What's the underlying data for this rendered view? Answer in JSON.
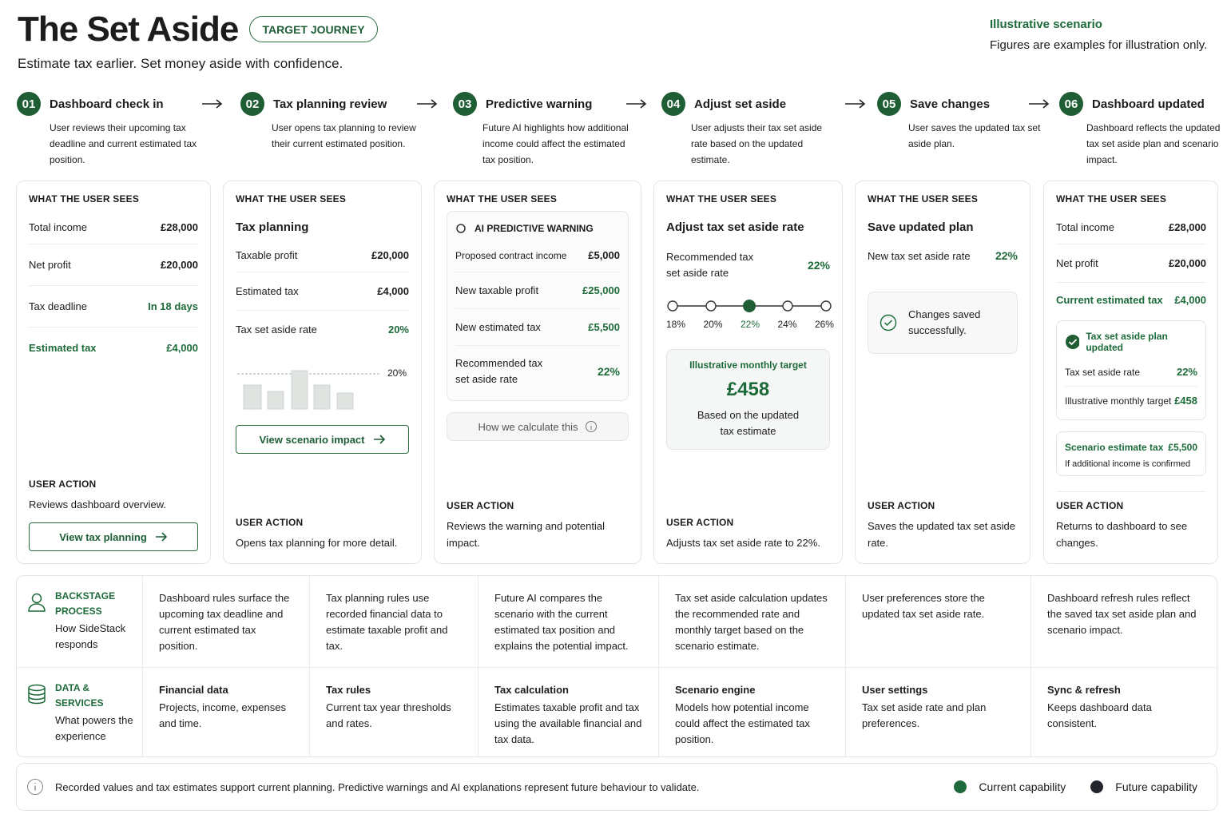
{
  "header": {
    "title": "The Set Aside",
    "badge": "TARGET JOURNEY",
    "subtitle": "Estimate tax earlier. Set money aside with confidence.",
    "scenario_label": "Illustrative scenario",
    "scenario_note": "Figures are examples for illustration only."
  },
  "steps": [
    {
      "number": "01",
      "title": "Dashboard check in",
      "description": "User reviews their upcoming tax deadline and current estimated tax position."
    },
    {
      "number": "02",
      "title": "Tax planning review",
      "description": "User opens tax planning to review their current estimated position."
    },
    {
      "number": "03",
      "title": "Predictive warning",
      "description": "Future AI highlights how additional income could affect the estimated tax position."
    },
    {
      "number": "04",
      "title": "Adjust set aside",
      "description": "User adjusts their tax set aside rate based on the updated estimate."
    },
    {
      "number": "05",
      "title": "Save changes",
      "description": "User saves the updated tax set aside plan."
    },
    {
      "number": "06",
      "title": "Dashboard updated",
      "description": "Dashboard reflects the updated tax set aside plan and scenario impact."
    }
  ],
  "cards": [
    {
      "heading": "WHAT THE USER SEES",
      "rows": [
        {
          "label": "Total income",
          "value": "£28,000"
        },
        {
          "label": "Net profit",
          "value": "£20,000"
        },
        {
          "label": "Tax deadline",
          "value": "In 18 days"
        },
        {
          "label": "Estimated tax",
          "value": "£4,000"
        }
      ],
      "action_heading": "USER ACTION",
      "action": "Reviews dashboard overview.",
      "button": "View tax planning"
    },
    {
      "heading": "WHAT THE USER SEES",
      "title": "Tax planning",
      "rows": [
        {
          "label": "Taxable profit",
          "value": "£20,000"
        },
        {
          "label": "Estimated tax",
          "value": "£4,000"
        },
        {
          "label": "Tax set aside rate",
          "value": "20%"
        }
      ],
      "chart_label": "20%",
      "button": "View scenario impact",
      "action_heading": "USER ACTION",
      "action": "Opens tax planning for more detail."
    },
    {
      "heading": "WHAT THE USER SEES",
      "warning_title": "AI PREDICTIVE WARNING",
      "rows": [
        {
          "label": "Proposed contract income",
          "value": "£5,000"
        },
        {
          "label": "New taxable profit",
          "value": "£25,000"
        },
        {
          "label": "New estimated tax",
          "value": "£5,500"
        },
        {
          "label": "Recommended tax set aside rate",
          "value": "22%"
        }
      ],
      "link": "How we calculate this",
      "action_heading": "USER ACTION",
      "action": "Reviews the warning and potential impact."
    },
    {
      "heading": "WHAT THE USER SEES",
      "title": "Adjust tax set aside rate",
      "rows": [
        {
          "label": "Recommended tax set aside rate",
          "value": "22%"
        }
      ],
      "slider_ticks": [
        "18%",
        "20%",
        "22%",
        "24%",
        "26%"
      ],
      "target_label": "Illustrative monthly target",
      "target_value": "£458",
      "target_note": "Based on the updated tax estimate",
      "action_heading": "USER ACTION",
      "action": "Adjusts tax set aside rate to 22%."
    },
    {
      "heading": "WHAT THE USER SEES",
      "title": "Save updated plan",
      "rows": [
        {
          "label": "New tax set aside rate",
          "value": "22%"
        }
      ],
      "confirmation": "Changes saved successfully.",
      "action_heading": "USER ACTION",
      "action": "Saves the updated tax set aside rate."
    },
    {
      "heading": "WHAT THE USER SEES",
      "rows": [
        {
          "label": "Total income",
          "value": "£28,000"
        },
        {
          "label": "Net profit",
          "value": "£20,000"
        },
        {
          "label": "Current estimated tax",
          "value": "£4,000"
        }
      ],
      "update_title": "Tax set aside plan updated",
      "update_rows": [
        {
          "label": "Tax set aside rate",
          "value": "22%"
        },
        {
          "label": "Illustrative monthly target",
          "value": "£458"
        }
      ],
      "scenario_row": {
        "label": "Scenario estimate tax",
        "value": "£5,500"
      },
      "scenario_note": "If additional income is confirmed",
      "action_heading": "USER ACTION",
      "action": "Returns to dashboard to see changes."
    }
  ],
  "layers": [
    {
      "title": "BACKSTAGE PROCESS",
      "subtitle": "How SideStack responds",
      "cells": [
        {
          "text": "Dashboard rules surface the upcoming tax deadline and current estimated tax position."
        },
        {
          "text": "Tax planning rules use recorded financial data to estimate taxable profit and tax."
        },
        {
          "text": "Future AI compares the scenario with the current estimated tax position and explains the potential impact."
        },
        {
          "text": "Tax set aside calculation updates the recommended rate and monthly target based on the scenario estimate."
        },
        {
          "text": "User preferences store the updated tax set aside rate."
        },
        {
          "text": "Dashboard refresh rules reflect the saved tax set aside plan and scenario impact."
        }
      ]
    },
    {
      "title": "DATA & SERVICES",
      "subtitle": "What powers the experience",
      "cells": [
        {
          "title": "Financial data",
          "text": "Projects, income, expenses and time."
        },
        {
          "title": "Tax rules",
          "text": "Current tax year thresholds and rates."
        },
        {
          "title": "Tax calculation",
          "text": "Estimates taxable profit and tax using the available financial and tax data."
        },
        {
          "title": "Scenario engine",
          "text": "Models how potential income could affect the estimated tax position."
        },
        {
          "title": "User settings",
          "text": "Tax set aside rate and plan preferences."
        },
        {
          "title": "Sync & refresh",
          "text": "Keeps dashboard data consistent."
        }
      ]
    }
  ],
  "footer": {
    "note": "Recorded values and tax estimates support current planning. Predictive warnings and AI explanations represent future behaviour to validate.",
    "legend": [
      "Current capability",
      "Future capability"
    ]
  }
}
